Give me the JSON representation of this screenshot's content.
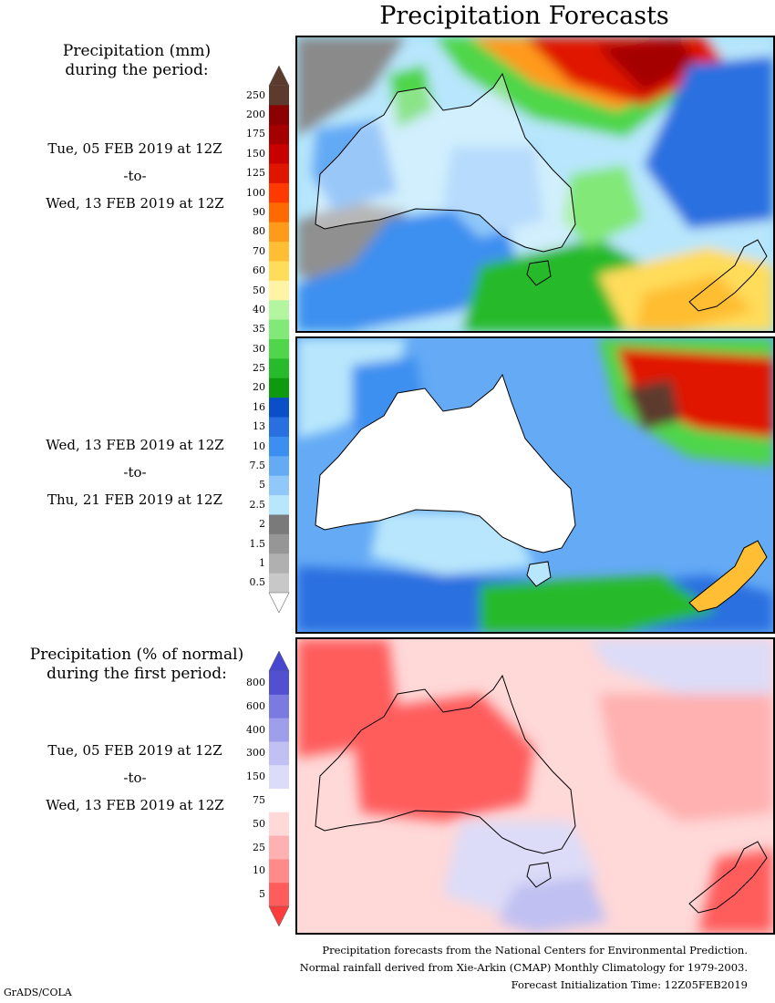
{
  "title": "Precipitation Forecasts",
  "period1": {
    "header_line1": "Precipitation (mm)",
    "header_line2": "during the period:",
    "start": "Tue, 05 FEB 2019 at 12Z",
    "to": "-to-",
    "end": "Wed, 13 FEB 2019 at 12Z"
  },
  "period2": {
    "start": "Wed, 13 FEB 2019 at 12Z",
    "to": "-to-",
    "end": "Thu, 21 FEB 2019 at 12Z"
  },
  "anomaly": {
    "header_line1": "Precipitation (% of normal)",
    "header_line2": "during the first period:",
    "start": "Tue, 05 FEB 2019 at 12Z",
    "to": "-to-",
    "end": "Wed, 13 FEB 2019 at 12Z"
  },
  "colorbar_mm": {
    "labels": [
      "250",
      "200",
      "175",
      "150",
      "125",
      "100",
      "90",
      "80",
      "70",
      "60",
      "50",
      "40",
      "35",
      "30",
      "25",
      "20",
      "16",
      "13",
      "10",
      "7.5",
      "5",
      "2.5",
      "2",
      "1.5",
      "1",
      "0.5"
    ],
    "colors": [
      "#5c3b2e",
      "#8b0000",
      "#a50000",
      "#c80000",
      "#e01500",
      "#ff3a00",
      "#ff6a00",
      "#ff9a1a",
      "#ffbe33",
      "#ffdc5a",
      "#fff3a6",
      "#b4f5a0",
      "#82e878",
      "#4fd64a",
      "#27ba2a",
      "#0e9a10",
      "#0a4fc8",
      "#2a6fe0",
      "#3c8ff0",
      "#64aaf5",
      "#90c8fa",
      "#b8e6fc",
      "#7a7a7a",
      "#969696",
      "#b0b0b0",
      "#c8c8c8"
    ],
    "min_color": "#ffffff",
    "max_color": "#5c3b2e"
  },
  "colorbar_pct": {
    "labels": [
      "800",
      "600",
      "400",
      "300",
      "150",
      "75",
      "50",
      "25",
      "10",
      "5"
    ],
    "colors": [
      "#5050d0",
      "#7a7ae0",
      "#9e9eea",
      "#c0c0f2",
      "#dcdcf8",
      "#ffffff",
      "#ffd8d8",
      "#ffb0b0",
      "#ff8a8a",
      "#ff5c5c"
    ],
    "min_color": "#ff3c3c",
    "max_color": "#4646d0"
  },
  "footer": {
    "line1": "Precipitation forecasts from the National Centers for Environmental Prediction.",
    "line2": "Normal rainfall derived from Xie-Arkin (CMAP) Monthly Climatology for 1979-2003.",
    "line3": "Forecast Initialization Time: 12Z05FEB2019"
  },
  "credit": "GrADS/COLA"
}
